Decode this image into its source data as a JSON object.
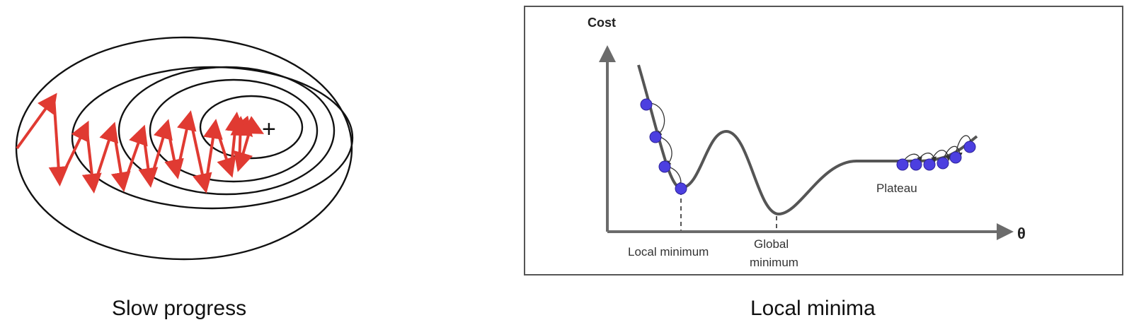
{
  "left_panel": {
    "caption": "Slow progress",
    "target_marker": "+"
  },
  "right_panel": {
    "caption": "Local minima",
    "y_axis_label": "Cost",
    "x_axis_label": "θ",
    "local_min_label": "Local minimum",
    "global_min_label_line1": "Global",
    "global_min_label_line2": "minimum",
    "plateau_label": "Plateau"
  },
  "colors": {
    "arrow": "#e03a32",
    "ball": "#4c3fe0",
    "curve": "#555555",
    "axis": "#6b6b6b",
    "contour": "#111111"
  }
}
